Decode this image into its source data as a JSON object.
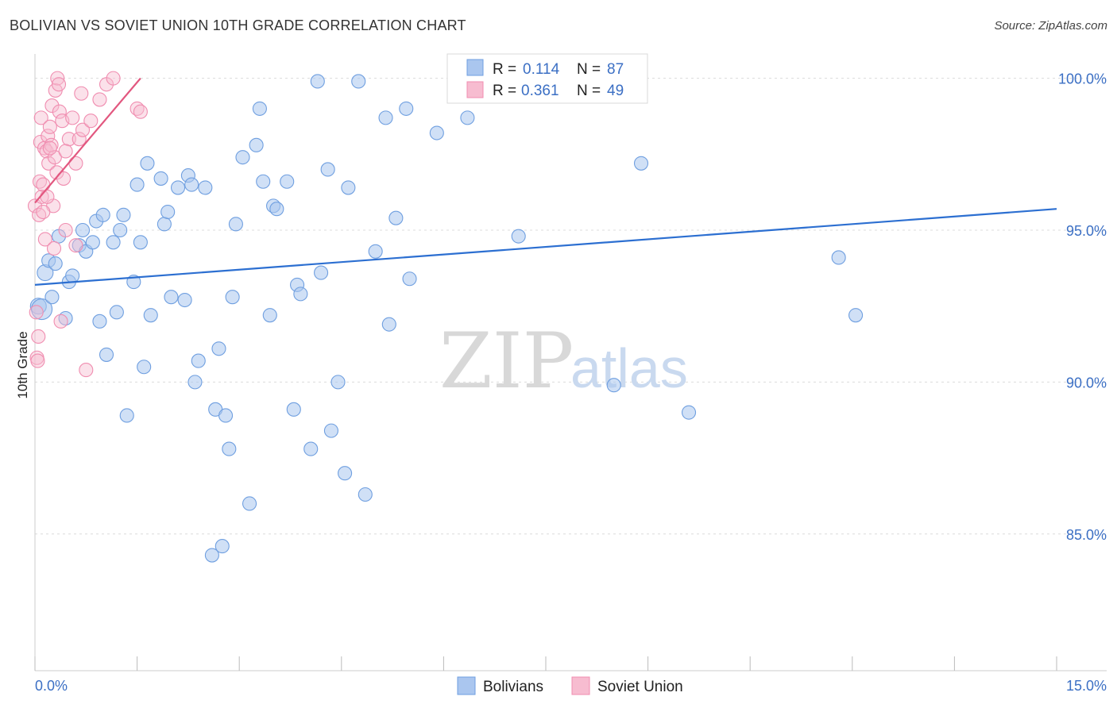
{
  "chart_data": {
    "type": "scatter",
    "title": "BOLIVIAN VS SOVIET UNION 10TH GRADE CORRELATION CHART",
    "source": "Source: ZipAtlas.com",
    "xlabel": "",
    "ylabel": "10th Grade",
    "xlim": [
      0.0,
      15.0
    ],
    "ylim": [
      80.5,
      100.8
    ],
    "x_tick_labels": [
      "0.0%",
      "15.0%"
    ],
    "y_ticks": [
      100.0,
      95.0,
      90.0,
      85.0
    ],
    "y_tick_labels": [
      "100.0%",
      "95.0%",
      "90.0%",
      "85.0%"
    ],
    "watermark": {
      "left": "ZIP",
      "right": "atlas"
    },
    "legend": {
      "r_label": "R =",
      "n_label": "N =",
      "entries": [
        {
          "name": "Bolivians",
          "r": "0.114",
          "n": "87"
        },
        {
          "name": "Soviet Union",
          "r": "0.361",
          "n": "49"
        }
      ]
    },
    "series": [
      {
        "name": "Bolivians",
        "color": "#6f9fe0",
        "line_color": "#2c6fd1",
        "trend": {
          "x": [
            0.0,
            15.0
          ],
          "y": [
            93.2,
            95.7
          ]
        },
        "points": [
          [
            0.05,
            92.5
          ],
          [
            0.1,
            92.4
          ],
          [
            0.15,
            93.6
          ],
          [
            0.2,
            94.0
          ],
          [
            0.25,
            92.8
          ],
          [
            0.3,
            93.9
          ],
          [
            0.35,
            94.8
          ],
          [
            0.45,
            92.1
          ],
          [
            0.5,
            93.3
          ],
          [
            0.55,
            93.5
          ],
          [
            0.65,
            94.5
          ],
          [
            0.7,
            95.0
          ],
          [
            0.75,
            94.3
          ],
          [
            0.85,
            94.6
          ],
          [
            0.9,
            95.3
          ],
          [
            0.95,
            92.0
          ],
          [
            1.0,
            95.5
          ],
          [
            1.05,
            90.9
          ],
          [
            1.15,
            94.6
          ],
          [
            1.2,
            92.3
          ],
          [
            1.25,
            95.0
          ],
          [
            1.3,
            95.5
          ],
          [
            1.35,
            88.9
          ],
          [
            1.45,
            93.3
          ],
          [
            1.5,
            96.5
          ],
          [
            1.55,
            94.6
          ],
          [
            1.6,
            90.5
          ],
          [
            1.65,
            97.2
          ],
          [
            1.7,
            92.2
          ],
          [
            1.85,
            96.7
          ],
          [
            1.9,
            95.2
          ],
          [
            1.95,
            95.6
          ],
          [
            2.0,
            92.8
          ],
          [
            2.1,
            96.4
          ],
          [
            2.2,
            92.7
          ],
          [
            2.25,
            96.8
          ],
          [
            2.3,
            96.5
          ],
          [
            2.35,
            90.0
          ],
          [
            2.4,
            90.7
          ],
          [
            2.5,
            96.4
          ],
          [
            2.6,
            84.3
          ],
          [
            2.65,
            89.1
          ],
          [
            2.7,
            91.1
          ],
          [
            2.75,
            84.6
          ],
          [
            2.8,
            88.9
          ],
          [
            2.85,
            87.8
          ],
          [
            2.9,
            92.8
          ],
          [
            2.95,
            95.2
          ],
          [
            3.05,
            97.4
          ],
          [
            3.15,
            86.0
          ],
          [
            3.25,
            97.8
          ],
          [
            3.3,
            99.0
          ],
          [
            3.35,
            96.6
          ],
          [
            3.45,
            92.2
          ],
          [
            3.5,
            95.8
          ],
          [
            3.55,
            95.7
          ],
          [
            3.7,
            96.6
          ],
          [
            3.8,
            89.1
          ],
          [
            3.85,
            93.2
          ],
          [
            3.9,
            92.9
          ],
          [
            4.05,
            87.8
          ],
          [
            4.15,
            99.9
          ],
          [
            4.2,
            93.6
          ],
          [
            4.3,
            97.0
          ],
          [
            4.35,
            88.4
          ],
          [
            4.45,
            90.0
          ],
          [
            4.55,
            87.0
          ],
          [
            4.6,
            96.4
          ],
          [
            4.75,
            99.9
          ],
          [
            4.85,
            86.3
          ],
          [
            5.0,
            94.3
          ],
          [
            5.15,
            98.7
          ],
          [
            5.2,
            91.9
          ],
          [
            5.3,
            95.4
          ],
          [
            5.45,
            99.0
          ],
          [
            5.5,
            93.4
          ],
          [
            5.9,
            98.2
          ],
          [
            6.3,
            100.0
          ],
          [
            6.35,
            98.7
          ],
          [
            7.1,
            94.8
          ],
          [
            7.5,
            99.7
          ],
          [
            8.05,
            99.9
          ],
          [
            8.5,
            89.9
          ],
          [
            8.9,
            97.2
          ],
          [
            9.6,
            89.0
          ],
          [
            11.8,
            94.1
          ],
          [
            12.05,
            92.2
          ]
        ]
      },
      {
        "name": "Soviet Union",
        "color": "#f08db0",
        "line_color": "#e2577f",
        "trend": {
          "x": [
            0.0,
            1.55
          ],
          "y": [
            95.9,
            100.0
          ]
        },
        "points": [
          [
            0.0,
            95.8
          ],
          [
            0.02,
            92.3
          ],
          [
            0.03,
            90.8
          ],
          [
            0.04,
            90.7
          ],
          [
            0.05,
            91.5
          ],
          [
            0.06,
            95.5
          ],
          [
            0.07,
            96.6
          ],
          [
            0.08,
            97.9
          ],
          [
            0.09,
            98.7
          ],
          [
            0.1,
            96.1
          ],
          [
            0.12,
            96.5
          ],
          [
            0.14,
            97.7
          ],
          [
            0.15,
            94.7
          ],
          [
            0.17,
            97.6
          ],
          [
            0.19,
            98.1
          ],
          [
            0.2,
            97.2
          ],
          [
            0.22,
            98.4
          ],
          [
            0.24,
            97.8
          ],
          [
            0.25,
            99.1
          ],
          [
            0.27,
            95.8
          ],
          [
            0.29,
            97.4
          ],
          [
            0.3,
            99.6
          ],
          [
            0.32,
            96.9
          ],
          [
            0.33,
            100.0
          ],
          [
            0.35,
            99.8
          ],
          [
            0.36,
            98.9
          ],
          [
            0.38,
            92.0
          ],
          [
            0.4,
            98.6
          ],
          [
            0.42,
            96.7
          ],
          [
            0.45,
            95.0
          ],
          [
            0.5,
            98.0
          ],
          [
            0.55,
            98.7
          ],
          [
            0.6,
            94.5
          ],
          [
            0.65,
            98.0
          ],
          [
            0.7,
            98.3
          ],
          [
            0.75,
            90.4
          ],
          [
            0.82,
            98.6
          ],
          [
            0.95,
            99.3
          ],
          [
            1.05,
            99.8
          ],
          [
            1.15,
            100.0
          ],
          [
            1.5,
            99.0
          ],
          [
            1.55,
            98.9
          ],
          [
            0.6,
            97.2
          ],
          [
            0.22,
            97.7
          ],
          [
            0.18,
            96.1
          ],
          [
            0.28,
            94.4
          ],
          [
            0.12,
            95.6
          ],
          [
            0.45,
            97.6
          ],
          [
            0.68,
            99.5
          ]
        ]
      }
    ]
  }
}
